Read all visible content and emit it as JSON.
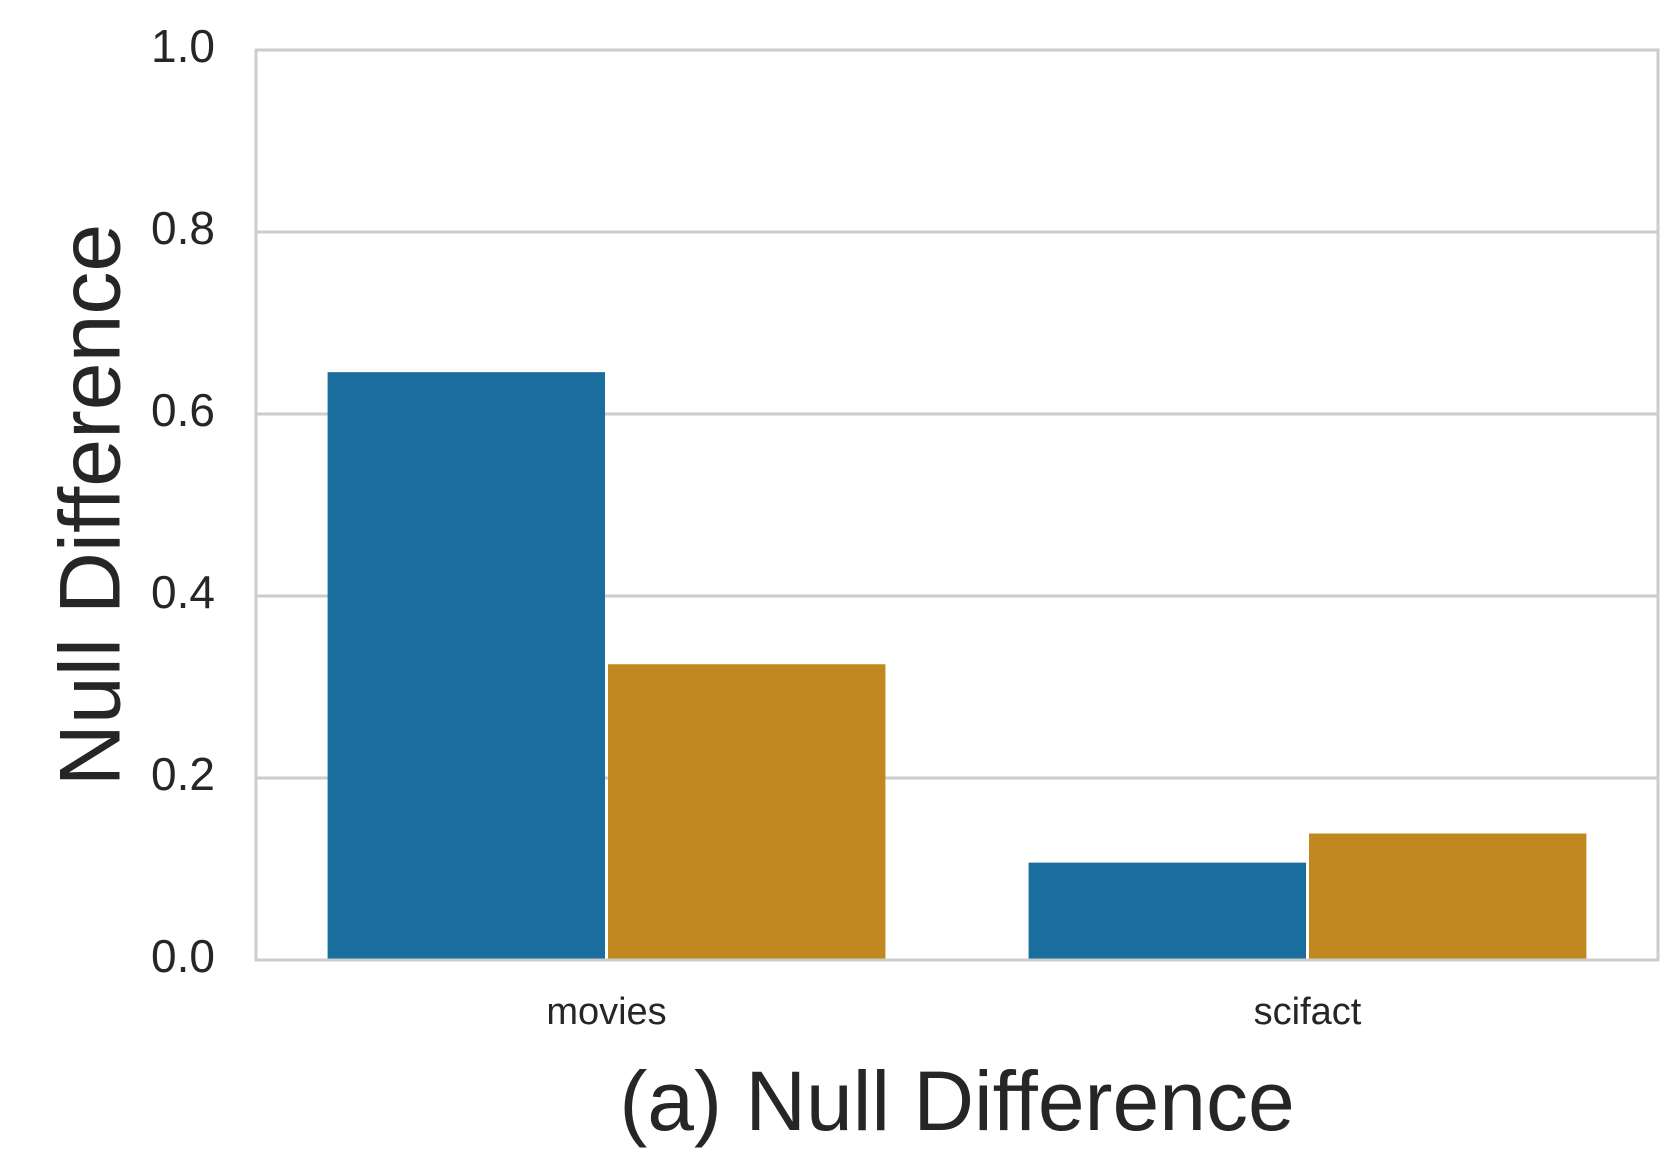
{
  "chart_data": {
    "type": "bar",
    "title": "",
    "xlabel": "(a) Null Difference",
    "ylabel": "Null Difference",
    "categories": [
      "movies",
      "scifact"
    ],
    "series": [
      {
        "values": [
          0.646,
          0.107
        ],
        "color": "#1a6e9e"
      },
      {
        "values": [
          0.325,
          0.139
        ],
        "color": "#c18821"
      }
    ],
    "ylim": [
      0,
      1.0
    ],
    "yticks": [
      "0.0",
      "0.2",
      "0.4",
      "0.6",
      "0.8",
      "1.0"
    ],
    "grid": true,
    "grid_axis": "y",
    "legend": "none",
    "colors": {
      "grid": "#cccccc",
      "frame": "#cccccc",
      "text": "#262626",
      "background": "#ffffff"
    }
  }
}
